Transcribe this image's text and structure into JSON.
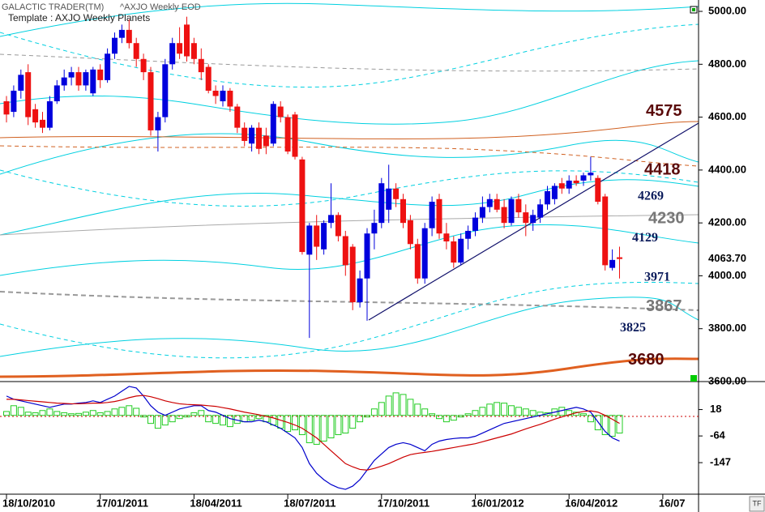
{
  "chart_data": [
    {
      "type": "candlestick",
      "title": "GALACTIC TRADER(TM)",
      "subtitle": "^AXJO Weekly EOD",
      "template": "Template : AXJO Weekly Planets",
      "up_color": "#0000dd",
      "down_color": "#ee1111",
      "ylim": [
        3600,
        5043
      ],
      "yticks": [
        {
          "value": 5000,
          "label": "5000.00"
        },
        {
          "value": 4800,
          "label": "4800.00"
        },
        {
          "value": 4600,
          "label": "4600.00"
        },
        {
          "value": 4400,
          "label": "4400.00"
        },
        {
          "value": 4200,
          "label": "4200.00"
        },
        {
          "value": 4000,
          "label": "4000.00"
        },
        {
          "value": 3800,
          "label": "3800.00"
        },
        {
          "value": 3600,
          "label": "3600.00"
        }
      ],
      "last_price": {
        "value": 4063.7,
        "label": "4063.70"
      },
      "levels": [
        {
          "value": 4575,
          "color": "#5a0a0a"
        },
        {
          "value": 4418,
          "color": "#5a0a0a"
        },
        {
          "value": 4269,
          "color": "#0a1a5a"
        },
        {
          "value": 4230,
          "color": "#777777"
        },
        {
          "value": 4129,
          "color": "#0a1a5a"
        },
        {
          "value": 3971,
          "color": "#0a1a5a"
        },
        {
          "value": 3867,
          "color": "#777777"
        },
        {
          "value": 3825,
          "color": "#0a1a5a"
        },
        {
          "value": 3680,
          "color": "#5a0a0a"
        }
      ],
      "categories": [
        "18/10/2010",
        null,
        null,
        null,
        null,
        null,
        null,
        null,
        null,
        null,
        null,
        null,
        null,
        "17/01/2011",
        null,
        null,
        null,
        null,
        null,
        null,
        null,
        null,
        null,
        null,
        null,
        null,
        "18/04/2011",
        null,
        null,
        null,
        null,
        null,
        null,
        null,
        null,
        null,
        null,
        null,
        null,
        "18/07/2011",
        null,
        null,
        null,
        null,
        null,
        null,
        null,
        null,
        null,
        null,
        null,
        null,
        "17/10/2011",
        null,
        null,
        null,
        null,
        null,
        null,
        null,
        null,
        null,
        null,
        null,
        null,
        "16/01/2012",
        null,
        null,
        null,
        null,
        null,
        null,
        null,
        null,
        null,
        null,
        null,
        null,
        "16/04/2012",
        null,
        null,
        null,
        null,
        null,
        null,
        null,
        null,
        null,
        null,
        null,
        null,
        "16/07"
      ],
      "candles": [
        [
          4660,
          4680,
          4580,
          4610
        ],
        [
          4620,
          4720,
          4600,
          4700
        ],
        [
          4700,
          4780,
          4670,
          4760
        ],
        [
          4770,
          4800,
          4570,
          4600
        ],
        [
          4630,
          4650,
          4560,
          4580
        ],
        [
          4590,
          4620,
          4540,
          4560
        ],
        [
          4560,
          4680,
          4550,
          4660
        ],
        [
          4660,
          4740,
          4650,
          4720
        ],
        [
          4720,
          4780,
          4700,
          4750
        ],
        [
          4750,
          4790,
          4720,
          4770
        ],
        [
          4770,
          4790,
          4700,
          4720
        ],
        [
          4720,
          4780,
          4700,
          4770
        ],
        [
          4690,
          4790,
          4680,
          4780
        ],
        [
          4780,
          4800,
          4710,
          4740
        ],
        [
          4740,
          4860,
          4730,
          4840
        ],
        [
          4840,
          4920,
          4820,
          4900
        ],
        [
          4900,
          4950,
          4880,
          4930
        ],
        [
          4930,
          4970,
          4860,
          4880
        ],
        [
          4880,
          4900,
          4790,
          4820
        ],
        [
          4820,
          4840,
          4740,
          4770
        ],
        [
          4770,
          4790,
          4530,
          4550
        ],
        [
          4550,
          4620,
          4470,
          4600
        ],
        [
          4600,
          4820,
          4580,
          4800
        ],
        [
          4800,
          4900,
          4780,
          4880
        ],
        [
          4880,
          4940,
          4820,
          4840
        ],
        [
          4950,
          4980,
          4810,
          4830
        ],
        [
          4880,
          4900,
          4800,
          4820
        ],
        [
          4820,
          4860,
          4740,
          4770
        ],
        [
          4790,
          4800,
          4690,
          4700
        ],
        [
          4700,
          4720,
          4650,
          4680
        ],
        [
          4660,
          4720,
          4640,
          4700
        ],
        [
          4700,
          4710,
          4620,
          4640
        ],
        [
          4640,
          4650,
          4540,
          4560
        ],
        [
          4560,
          4580,
          4490,
          4510
        ],
        [
          4500,
          4570,
          4470,
          4560
        ],
        [
          4560,
          4580,
          4460,
          4480
        ],
        [
          4530,
          4560,
          4460,
          4490
        ],
        [
          4500,
          4660,
          4490,
          4650
        ],
        [
          4640,
          4660,
          4580,
          4600
        ],
        [
          4600,
          4610,
          4460,
          4470
        ],
        [
          4610,
          4620,
          4440,
          4450
        ],
        [
          4440,
          4450,
          4080,
          4090
        ],
        [
          4080,
          4200,
          3765,
          4190
        ],
        [
          4190,
          4230,
          4060,
          4110
        ],
        [
          4100,
          4210,
          4080,
          4200
        ],
        [
          4200,
          4350,
          4180,
          4230
        ],
        [
          4230,
          4240,
          4130,
          4150
        ],
        [
          4150,
          4170,
          4000,
          4040
        ],
        [
          4110,
          4120,
          3870,
          3900
        ],
        [
          3900,
          4020,
          3880,
          3990
        ],
        [
          3990,
          4180,
          3830,
          4160
        ],
        [
          4160,
          4250,
          4100,
          4200
        ],
        [
          4200,
          4370,
          4180,
          4350
        ],
        [
          4250,
          4420,
          4200,
          4330
        ],
        [
          4330,
          4350,
          4260,
          4290
        ],
        [
          4290,
          4310,
          4180,
          4200
        ],
        [
          4210,
          4230,
          4100,
          4120
        ],
        [
          4120,
          4140,
          3970,
          3990
        ],
        [
          3990,
          4200,
          3970,
          4180
        ],
        [
          4180,
          4300,
          4150,
          4280
        ],
        [
          4290,
          4310,
          4140,
          4160
        ],
        [
          4160,
          4200,
          4100,
          4130
        ],
        [
          4130,
          4150,
          4030,
          4050
        ],
        [
          4050,
          4160,
          4040,
          4140
        ],
        [
          4140,
          4190,
          4100,
          4170
        ],
        [
          4170,
          4240,
          4150,
          4220
        ],
        [
          4220,
          4300,
          4200,
          4260
        ],
        [
          4260,
          4310,
          4240,
          4290
        ],
        [
          4290,
          4310,
          4240,
          4250
        ],
        [
          4260,
          4290,
          4180,
          4200
        ],
        [
          4200,
          4300,
          4190,
          4290
        ],
        [
          4290,
          4310,
          4220,
          4240
        ],
        [
          4240,
          4270,
          4150,
          4200
        ],
        [
          4200,
          4250,
          4170,
          4230
        ],
        [
          4220,
          4290,
          4200,
          4270
        ],
        [
          4270,
          4340,
          4250,
          4320
        ],
        [
          4290,
          4350,
          4270,
          4340
        ],
        [
          4350,
          4370,
          4310,
          4330
        ],
        [
          4330,
          4380,
          4310,
          4360
        ],
        [
          4360,
          4380,
          4340,
          4350
        ],
        [
          4360,
          4390,
          4340,
          4380
        ],
        [
          4380,
          4450,
          4360,
          4390
        ],
        [
          4370,
          4380,
          4270,
          4280
        ],
        [
          4300,
          4310,
          4020,
          4040
        ],
        [
          4030,
          4100,
          4020,
          4060
        ],
        [
          4070,
          4110,
          3990,
          4063.7
        ],
        null,
        null,
        null,
        null,
        null,
        null
      ]
    },
    {
      "type": "macd",
      "ylim": [
        -245,
        100
      ],
      "yticks": [
        18,
        -64,
        -147
      ],
      "series": [
        {
          "style": "histogram",
          "color": "#22cc22",
          "values": [
            12,
            30,
            25,
            10,
            8,
            15,
            20,
            12,
            8,
            5,
            6,
            10,
            15,
            8,
            12,
            20,
            25,
            30,
            22,
            -5,
            -25,
            -40,
            -30,
            -20,
            -10,
            -5,
            8,
            15,
            -20,
            -25,
            -30,
            -35,
            -25,
            -20,
            -15,
            -10,
            -20,
            -30,
            -40,
            -50,
            -45,
            -60,
            -85,
            -90,
            -80,
            -70,
            -60,
            -55,
            -40,
            -20,
            -5,
            20,
            40,
            60,
            70,
            65,
            50,
            35,
            20,
            5,
            -10,
            -20,
            -15,
            -5,
            5,
            15,
            25,
            35,
            40,
            38,
            30,
            25,
            20,
            15,
            10,
            8,
            20,
            25,
            15,
            10,
            5,
            -20,
            -45,
            -60,
            -65,
            -55,
            null,
            null,
            null,
            null,
            null,
            null
          ]
        },
        {
          "style": "line",
          "color": "#0000cc",
          "values": [
            60,
            50,
            45,
            40,
            35,
            30,
            25,
            30,
            35,
            35,
            38,
            40,
            45,
            40,
            50,
            60,
            75,
            90,
            85,
            60,
            30,
            10,
            0,
            10,
            20,
            25,
            30,
            30,
            15,
            10,
            0,
            -10,
            -15,
            -20,
            -20,
            -15,
            -20,
            -30,
            -40,
            -55,
            -70,
            -100,
            -150,
            -180,
            -200,
            -215,
            -225,
            -230,
            -220,
            -200,
            -170,
            -140,
            -120,
            -100,
            -90,
            -85,
            -90,
            -100,
            -110,
            -90,
            -80,
            -75,
            -72,
            -70,
            -70,
            -65,
            -55,
            -45,
            -35,
            -25,
            -20,
            -15,
            -10,
            -5,
            0,
            5,
            10,
            15,
            20,
            25,
            20,
            10,
            -20,
            -50,
            -70,
            -80,
            null,
            null,
            null,
            null,
            null,
            null
          ]
        },
        {
          "style": "line",
          "color": "#cc0000",
          "values": [
            50,
            50,
            48,
            46,
            44,
            42,
            40,
            38,
            37,
            36,
            36,
            37,
            38,
            38,
            40,
            43,
            48,
            55,
            60,
            62,
            58,
            52,
            45,
            40,
            36,
            34,
            33,
            32,
            30,
            28,
            24,
            20,
            15,
            10,
            6,
            2,
            -3,
            -8,
            -15,
            -22,
            -30,
            -40,
            -55,
            -70,
            -90,
            -110,
            -130,
            -150,
            -160,
            -168,
            -170,
            -165,
            -158,
            -150,
            -140,
            -130,
            -122,
            -118,
            -115,
            -112,
            -108,
            -104,
            -100,
            -96,
            -92,
            -88,
            -82,
            -76,
            -70,
            -64,
            -58,
            -50,
            -42,
            -35,
            -28,
            -20,
            -12,
            -5,
            2,
            8,
            12,
            14,
            10,
            0,
            -12,
            -25,
            null,
            null,
            null,
            null,
            null,
            null
          ]
        }
      ]
    }
  ]
}
